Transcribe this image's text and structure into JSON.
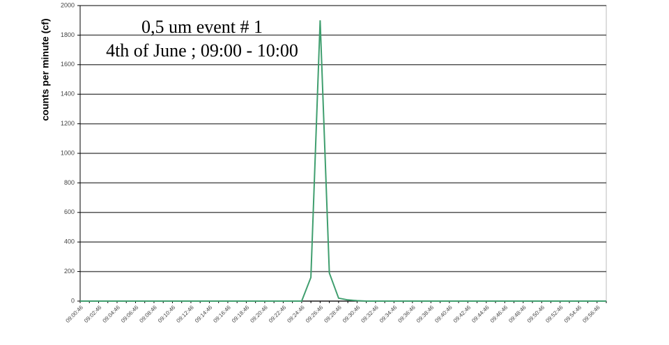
{
  "chart_data": {
    "type": "line",
    "title": "0,5 um event # 1",
    "subtitle": "4th of June ; 09:00 - 10:00",
    "y_label": "counts per minute (cf)",
    "categories": [
      "09:00:46",
      null,
      "09:02:46",
      null,
      "09:04:46",
      null,
      "09:06:46",
      null,
      "09:08:46",
      null,
      "09:10:46",
      null,
      "09:12:46",
      null,
      "09:14:46",
      null,
      "09:16:46",
      null,
      "09:18:46",
      null,
      "09:20:46",
      null,
      "09:22:46",
      null,
      "09:24:46",
      null,
      "09:26:46",
      null,
      "09:28:46",
      null,
      "09:30:46",
      null,
      "09:32:46",
      null,
      "09:34:46",
      null,
      "09:36:46",
      null,
      "09:38:46",
      null,
      "09:40:46",
      null,
      "09:42:46",
      null,
      "09:44:46",
      null,
      "09:46:46",
      null,
      "09:48:46",
      null,
      "09:50:46",
      null,
      "09:52:46",
      null,
      "09:54:46",
      null,
      "09:56:46",
      null
    ],
    "series": [
      {
        "name": "0,5 um",
        "color": "#3f9e6e",
        "values": [
          0,
          0,
          0,
          0,
          0,
          0,
          0,
          0,
          0,
          0,
          0,
          0,
          0,
          0,
          0,
          0,
          0,
          0,
          0,
          0,
          0,
          0,
          0,
          0,
          0,
          160,
          1900,
          190,
          20,
          8,
          3,
          0,
          0,
          0,
          0,
          0,
          0,
          0,
          0,
          0,
          0,
          0,
          0,
          0,
          0,
          0,
          0,
          0,
          0,
          0,
          0,
          0,
          0,
          0,
          0,
          0,
          0,
          0
        ]
      }
    ],
    "ylim": [
      0,
      2000
    ],
    "yticks": [
      0,
      200,
      400,
      600,
      800,
      1000,
      1200,
      1400,
      1600,
      1800,
      2000
    ],
    "grid": true
  }
}
